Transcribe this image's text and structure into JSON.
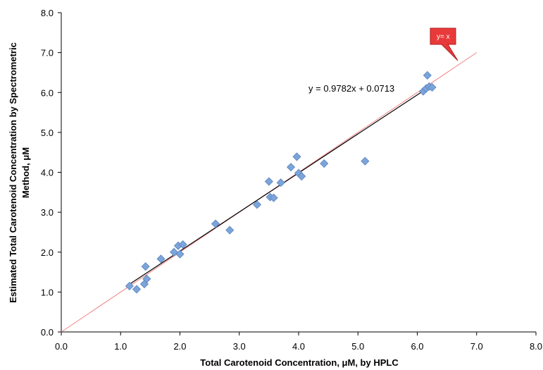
{
  "chart_data": {
    "type": "scatter",
    "xlabel": "Total Carotenoid Concentration, μM, by HPLC",
    "ylabel": "Estimated Total Carotenoid Concentration by Spectrometric Method, μM",
    "ylabel_lines": [
      "Estimated Total Carotenoid Concentration by Spectrometric",
      "Method, μM"
    ],
    "xlim": [
      0,
      8
    ],
    "ylim": [
      0,
      8
    ],
    "x_ticks": [
      "0.0",
      "1.0",
      "2.0",
      "3.0",
      "4.0",
      "5.0",
      "6.0",
      "7.0",
      "8.0"
    ],
    "y_ticks": [
      "0.0",
      "1.0",
      "2.0",
      "3.0",
      "4.0",
      "5.0",
      "6.0",
      "7.0",
      "8.0"
    ],
    "grid": false,
    "series": [
      {
        "marker": "diamond",
        "color": "#7BA4DB",
        "points": [
          [
            1.15,
            1.15
          ],
          [
            1.27,
            1.07
          ],
          [
            1.4,
            1.2
          ],
          [
            1.42,
            1.64
          ],
          [
            1.44,
            1.33
          ],
          [
            1.68,
            1.83
          ],
          [
            1.9,
            2.0
          ],
          [
            1.97,
            2.16
          ],
          [
            2.0,
            1.95
          ],
          [
            2.05,
            2.19
          ],
          [
            2.6,
            2.71
          ],
          [
            2.84,
            2.55
          ],
          [
            3.3,
            3.19
          ],
          [
            3.5,
            3.77
          ],
          [
            3.52,
            3.38
          ],
          [
            3.58,
            3.36
          ],
          [
            3.7,
            3.74
          ],
          [
            3.87,
            4.13
          ],
          [
            3.97,
            4.39
          ],
          [
            4.0,
            3.98
          ],
          [
            4.05,
            3.9
          ],
          [
            4.43,
            4.22
          ],
          [
            5.12,
            4.28
          ],
          [
            6.1,
            6.03
          ],
          [
            6.15,
            6.1
          ],
          [
            6.17,
            6.43
          ],
          [
            6.2,
            6.15
          ],
          [
            6.25,
            6.13
          ]
        ]
      }
    ],
    "trendline": {
      "slope": 0.9782,
      "intercept": 0.0713,
      "x_range": [
        1.1,
        6.25
      ],
      "color": "#000000",
      "label": "y = 0.9782x + 0.0713"
    },
    "identity_line": {
      "x_range": [
        0,
        7.0
      ],
      "color": "#F08080",
      "label": "y= x"
    }
  }
}
